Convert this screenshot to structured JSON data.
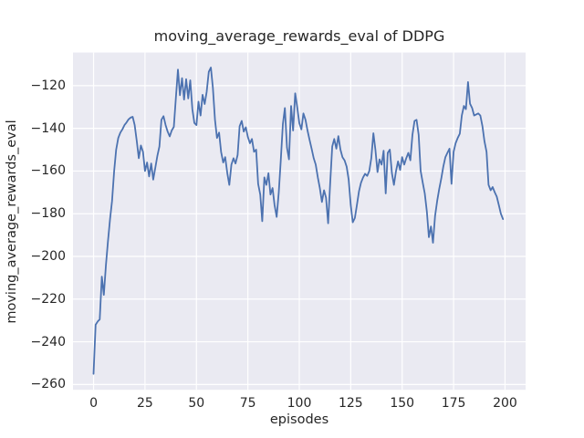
{
  "figure": {
    "title": "moving_average_rewards_eval of DDPG",
    "xlabel": "episodes",
    "ylabel": "moving_average_rewards_eval"
  },
  "chart_data": {
    "type": "line",
    "title": "moving_average_rewards_eval of DDPG",
    "xlabel": "episodes",
    "ylabel": "moving_average_rewards_eval",
    "grid": true,
    "legend": false,
    "xlim": [
      -10,
      210
    ],
    "ylim": [
      -262.5,
      -104.5
    ],
    "xticks": [
      0,
      25,
      50,
      75,
      100,
      125,
      150,
      175,
      200
    ],
    "yticks": [
      -120,
      -140,
      -160,
      -180,
      -200,
      -220,
      -240,
      -260
    ],
    "ytick_labels": [
      "−120",
      "−140",
      "−160",
      "−180",
      "−200",
      "−220",
      "−240",
      "−260"
    ],
    "xtick_labels": [
      "0",
      "25",
      "50",
      "75",
      "100",
      "125",
      "150",
      "175",
      "200"
    ],
    "x_start": 0,
    "x_step": 1,
    "series": [
      {
        "name": "moving_average_rewards_eval",
        "color": "#4C72B0",
        "values": [
          -255,
          -232,
          -230.5,
          -229.5,
          -209.5,
          -218,
          -204,
          -193,
          -182.5,
          -174,
          -160,
          -150,
          -144.5,
          -142,
          -140.5,
          -138.5,
          -137.3,
          -135.8,
          -135,
          -134.6,
          -138.5,
          -146,
          -154,
          -148,
          -151,
          -160,
          -156,
          -162.5,
          -156.5,
          -164,
          -158.5,
          -153,
          -148.5,
          -136,
          -134.3,
          -138.5,
          -141.5,
          -143.8,
          -141,
          -139.3,
          -126,
          -112.5,
          -124.5,
          -116.5,
          -126.5,
          -117,
          -126,
          -117.5,
          -131,
          -137.5,
          -138.5,
          -127.5,
          -134,
          -124.3,
          -128.6,
          -122.9,
          -113.5,
          -111.5,
          -121,
          -136,
          -144.5,
          -142,
          -151,
          -156,
          -153.5,
          -161,
          -166.5,
          -157,
          -154,
          -156.5,
          -152.5,
          -139,
          -136.5,
          -141.5,
          -139.5,
          -144,
          -147,
          -145,
          -151,
          -150,
          -166,
          -171,
          -183.5,
          -163,
          -166.5,
          -161,
          -171,
          -168,
          -176,
          -181.5,
          -170,
          -155,
          -138,
          -130.5,
          -149,
          -154.5,
          -129.5,
          -141,
          -123.6,
          -130,
          -137.5,
          -140.5,
          -133,
          -136,
          -141,
          -145.5,
          -149.5,
          -154,
          -157,
          -163,
          -168,
          -174.5,
          -169,
          -172.5,
          -184.5,
          -166,
          -148.5,
          -145,
          -149.5,
          -143.6,
          -150,
          -153.5,
          -155,
          -158,
          -164,
          -176,
          -184,
          -182,
          -176,
          -169.5,
          -165.5,
          -163,
          -161.3,
          -162.3,
          -160,
          -154,
          -142.3,
          -150,
          -160.5,
          -154.5,
          -157,
          -150.5,
          -170.5,
          -151.5,
          -150,
          -161,
          -166.5,
          -160,
          -155.5,
          -159.5,
          -153.5,
          -157,
          -154,
          -151.5,
          -155,
          -143,
          -136.5,
          -136,
          -143,
          -160,
          -165.5,
          -170.5,
          -179,
          -191,
          -186,
          -193.6,
          -181,
          -174,
          -168.5,
          -163.5,
          -158,
          -153.5,
          -151.5,
          -149.5,
          -166,
          -151,
          -147,
          -144.5,
          -142.5,
          -134,
          -129.5,
          -131,
          -118.3,
          -128.5,
          -130.5,
          -134,
          -133.5,
          -133,
          -134,
          -139,
          -146,
          -151,
          -166.5,
          -169,
          -167.5,
          -170,
          -172,
          -176,
          -180,
          -182.5
        ]
      }
    ],
    "style": {
      "axes_background": "#EAEAF2",
      "grid_color": "#FFFFFF",
      "line_color": "#4C72B0",
      "text_color": "#262626",
      "figure_background": "#FFFFFF"
    }
  }
}
